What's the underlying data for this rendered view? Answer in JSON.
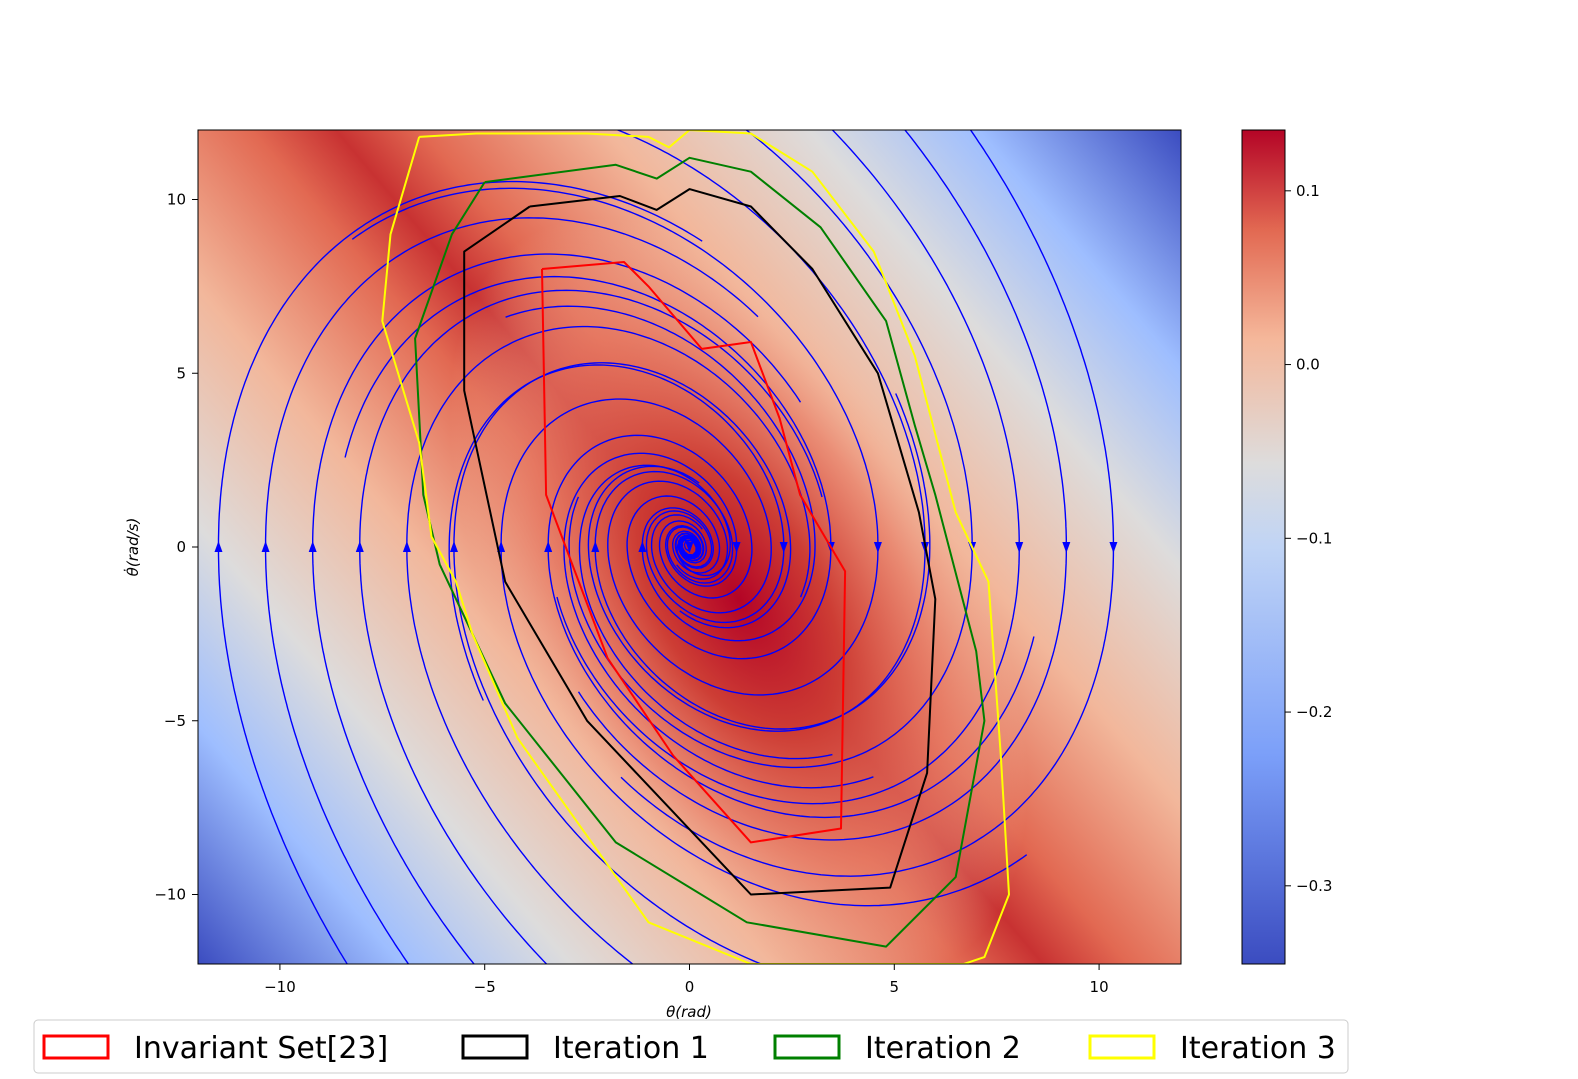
{
  "chart_data": {
    "type": "heatmap",
    "title": "",
    "xlabel": "θ(rad)",
    "ylabel": "θ̇(rad/s)",
    "xlim": [
      -12,
      12
    ],
    "ylim": [
      -12,
      12
    ],
    "x_ticks": [
      -10,
      -5,
      0,
      5,
      10
    ],
    "y_ticks": [
      -10,
      -5,
      0,
      5,
      10
    ],
    "x_tick_labels": [
      "−10",
      "−5",
      "0",
      "5",
      "10"
    ],
    "y_tick_labels": [
      "−10",
      "−5",
      "0",
      "5",
      "10"
    ],
    "colorbar": {
      "colormap": "coolwarm",
      "range": [
        -0.345,
        0.135
      ],
      "ticks": [
        0.1,
        0.0,
        -0.1,
        -0.2,
        -0.3
      ],
      "tick_labels": [
        "0.1",
        "0.0",
        "−0.1",
        "−0.2",
        "−0.3"
      ]
    },
    "streamlines": {
      "color": "#0000ff",
      "description": "phase-portrait vector field"
    },
    "legend": {
      "placement": "bottom",
      "entries": [
        {
          "name": "Invariant Set[23]",
          "color": "#ff0000"
        },
        {
          "name": "Iteration 1",
          "color": "#000000"
        },
        {
          "name": "Iteration 2",
          "color": "#008000"
        },
        {
          "name": "Iteration 3",
          "color": "#ffff00"
        }
      ]
    },
    "series": [
      {
        "name": "Invariant Set[23]",
        "color": "#ff0000",
        "points": [
          [
            -3.6,
            8.0
          ],
          [
            -1.6,
            8.2
          ],
          [
            -1.0,
            7.5
          ],
          [
            0.3,
            5.7
          ],
          [
            1.5,
            5.9
          ],
          [
            2.2,
            3.7
          ],
          [
            2.7,
            1.5
          ],
          [
            3.8,
            -0.7
          ],
          [
            3.7,
            -8.1
          ],
          [
            1.5,
            -8.5
          ],
          [
            -0.4,
            -6.0
          ],
          [
            -2.0,
            -3.2
          ],
          [
            -3.5,
            1.5
          ],
          [
            -3.6,
            8.0
          ]
        ]
      },
      {
        "name": "Iteration 1",
        "color": "#000000",
        "points": [
          [
            -3.9,
            9.8
          ],
          [
            -1.7,
            10.1
          ],
          [
            -0.8,
            9.7
          ],
          [
            0,
            10.3
          ],
          [
            1.5,
            9.8
          ],
          [
            3.0,
            8.0
          ],
          [
            4.6,
            5.0
          ],
          [
            5.6,
            1.0
          ],
          [
            6.0,
            -1.5
          ],
          [
            5.8,
            -6.5
          ],
          [
            4.9,
            -9.8
          ],
          [
            1.5,
            -10.0
          ],
          [
            -0.5,
            -7.5
          ],
          [
            -2.5,
            -5.0
          ],
          [
            -4.5,
            -1.0
          ],
          [
            -5.5,
            4.5
          ],
          [
            -5.5,
            8.5
          ],
          [
            -3.9,
            9.8
          ]
        ]
      },
      {
        "name": "Iteration 2",
        "color": "#008000",
        "points": [
          [
            -5.0,
            10.5
          ],
          [
            -1.8,
            11.0
          ],
          [
            -0.8,
            10.6
          ],
          [
            0,
            11.2
          ],
          [
            1.5,
            10.8
          ],
          [
            3.2,
            9.2
          ],
          [
            4.8,
            6.5
          ],
          [
            5.5,
            3.5
          ],
          [
            6.0,
            1.5
          ],
          [
            7.0,
            -3.0
          ],
          [
            7.2,
            -5.0
          ],
          [
            6.5,
            -9.5
          ],
          [
            4.8,
            -11.5
          ],
          [
            1.4,
            -10.8
          ],
          [
            -1.8,
            -8.5
          ],
          [
            -4.5,
            -4.5
          ],
          [
            -6.1,
            -0.5
          ],
          [
            -6.5,
            1.5
          ],
          [
            -6.7,
            6.0
          ],
          [
            -5.8,
            9.0
          ],
          [
            -5.0,
            10.5
          ]
        ]
      },
      {
        "name": "Iteration 3",
        "color": "#ffff00",
        "points": [
          [
            -6.6,
            11.8
          ],
          [
            -5.2,
            11.9
          ],
          [
            -2.5,
            11.9
          ],
          [
            -1.0,
            11.8
          ],
          [
            -0.5,
            11.5
          ],
          [
            0,
            12.0
          ],
          [
            1.5,
            11.9
          ],
          [
            3.0,
            10.8
          ],
          [
            4.5,
            8.5
          ],
          [
            5.5,
            5.5
          ],
          [
            6.5,
            1.0
          ],
          [
            7.3,
            -1.0
          ],
          [
            7.6,
            -6.0
          ],
          [
            7.8,
            -10.0
          ],
          [
            7.2,
            -11.8
          ],
          [
            6.7,
            -12.0
          ],
          [
            3.0,
            -12.0
          ],
          [
            1.5,
            -12.0
          ],
          [
            -1.0,
            -10.8
          ],
          [
            -4.2,
            -5.5
          ],
          [
            -5.3,
            -2.5
          ],
          [
            -5.7,
            -1.0
          ],
          [
            -6.3,
            0.3
          ],
          [
            -6.6,
            3.0
          ],
          [
            -7.5,
            6.5
          ],
          [
            -7.3,
            9.0
          ],
          [
            -6.6,
            11.8
          ]
        ]
      }
    ]
  }
}
